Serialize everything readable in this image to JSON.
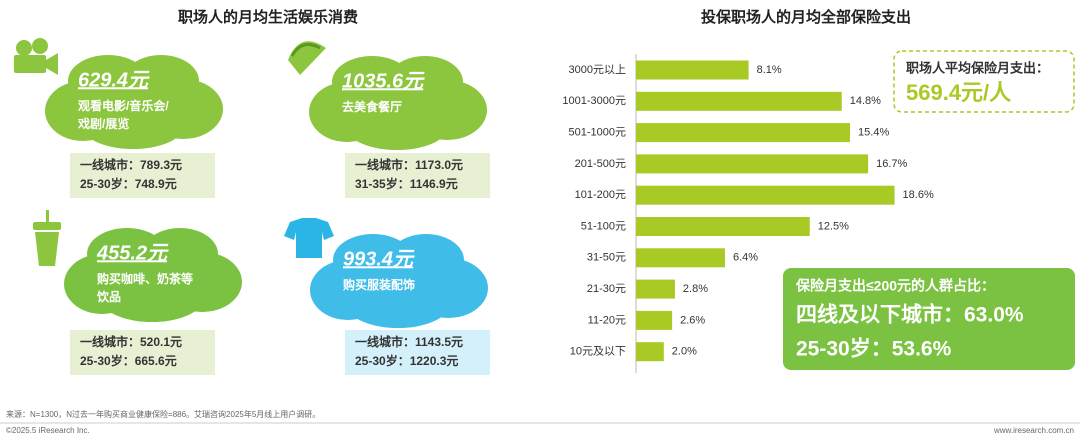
{
  "left_panel": {
    "title": "职场人的月均生活娱乐消费",
    "items": [
      {
        "amount": "629.4元",
        "label": [
          "观看电影/音乐会/",
          "戏剧/展览"
        ],
        "stats": [
          "一线城市：789.3元",
          "25-30岁：748.9元"
        ]
      },
      {
        "amount": "1035.6元",
        "label": [
          "去美食餐厅"
        ],
        "stats": [
          "一线城市：1173.0元",
          "31-35岁：1146.9元"
        ]
      },
      {
        "amount": "455.2元",
        "label": [
          "购买咖啡、奶茶等",
          "饮品"
        ],
        "stats": [
          "一线城市：520.1元",
          "25-30岁：665.6元"
        ]
      },
      {
        "amount": "993.4元",
        "label": [
          "购买服装配饰"
        ],
        "stats": [
          "一线城市：1143.5元",
          "25-30岁：1220.3元"
        ]
      }
    ]
  },
  "chart_data": {
    "type": "bar",
    "orientation": "horizontal",
    "title": "投保职场人的月均全部保险支出",
    "categories": [
      "3000元以上",
      "1001-3000元",
      "501-1000元",
      "201-500元",
      "101-200元",
      "51-100元",
      "31-50元",
      "21-30元",
      "11-20元",
      "10元及以下"
    ],
    "values": [
      8.1,
      14.8,
      15.4,
      16.7,
      18.6,
      12.5,
      6.4,
      2.8,
      2.6,
      2.0
    ],
    "value_labels": [
      "8.1%",
      "14.8%",
      "15.4%",
      "16.7%",
      "18.6%",
      "12.5%",
      "6.4%",
      "2.8%",
      "2.6%",
      "2.0%"
    ],
    "color": "#a9c925",
    "xlim": [
      0,
      20
    ],
    "callout_average": {
      "label": "职场人平均保险月支出：",
      "value": "569.4元/人"
    },
    "callout_share": {
      "label": "保险月支出≤200元的人群占比：",
      "lines": [
        "四线及以下城市：63.0%",
        "25-30岁：53.6%"
      ]
    }
  },
  "footer": {
    "source": "来源：N=1300，N过去一年购买商业健康保险=886。艾瑞咨询2025年5月线上用户调研。",
    "copyright": "©2025.5 iResearch Inc.",
    "website": "www.iresearch.com.cn"
  }
}
